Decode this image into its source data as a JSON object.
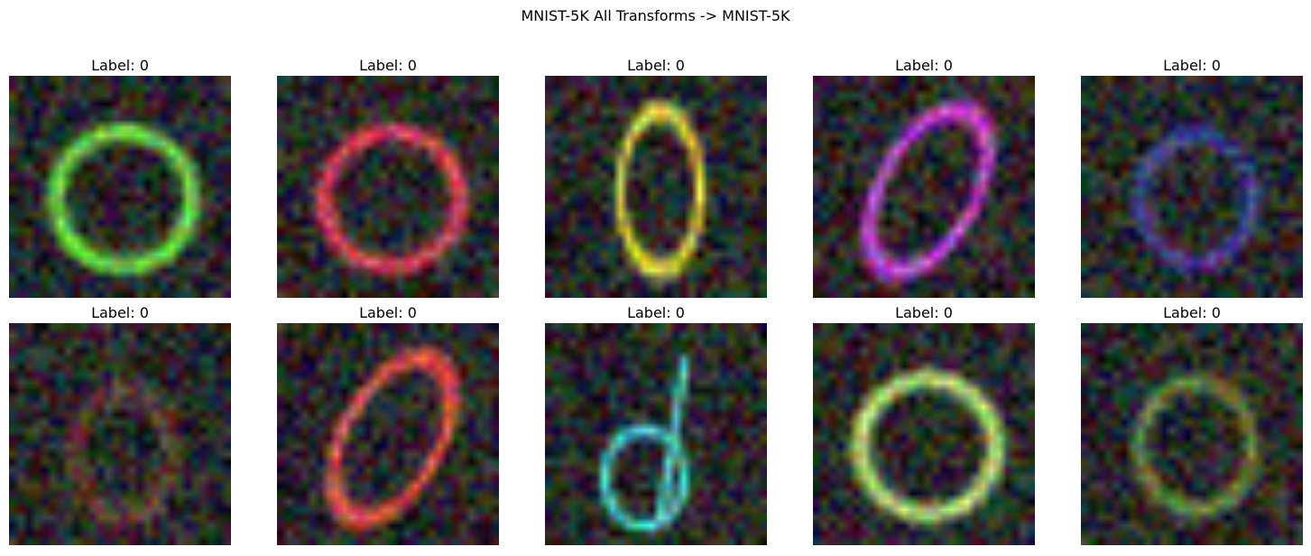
{
  "figure": {
    "title": "MNIST-5K All Transforms -> MNIST-5K"
  },
  "panels": [
    {
      "title": "Label: 0",
      "shape": "ring",
      "tint": "#55d02a"
    },
    {
      "title": "Label: 0",
      "shape": "ring",
      "tint": "#c8203a"
    },
    {
      "title": "Label: 0",
      "shape": "zero-tall",
      "tint": "#c6c21e"
    },
    {
      "title": "Label: 0",
      "shape": "zero-slant",
      "tint": "#b02ac0"
    },
    {
      "title": "Label: 0",
      "shape": "faint-ring",
      "tint": "#3c3cc8"
    },
    {
      "title": "Label: 0",
      "shape": "faint",
      "tint": "#b04a20"
    },
    {
      "title": "Label: 0",
      "shape": "zero-slant",
      "tint": "#d0302a"
    },
    {
      "title": "Label: 0",
      "shape": "loop-four",
      "tint": "#2ac0b0"
    },
    {
      "title": "Label: 0",
      "shape": "ring",
      "tint": "#a6d060"
    },
    {
      "title": "Label: 0",
      "shape": "faint-ring",
      "tint": "#7ab02a"
    }
  ]
}
